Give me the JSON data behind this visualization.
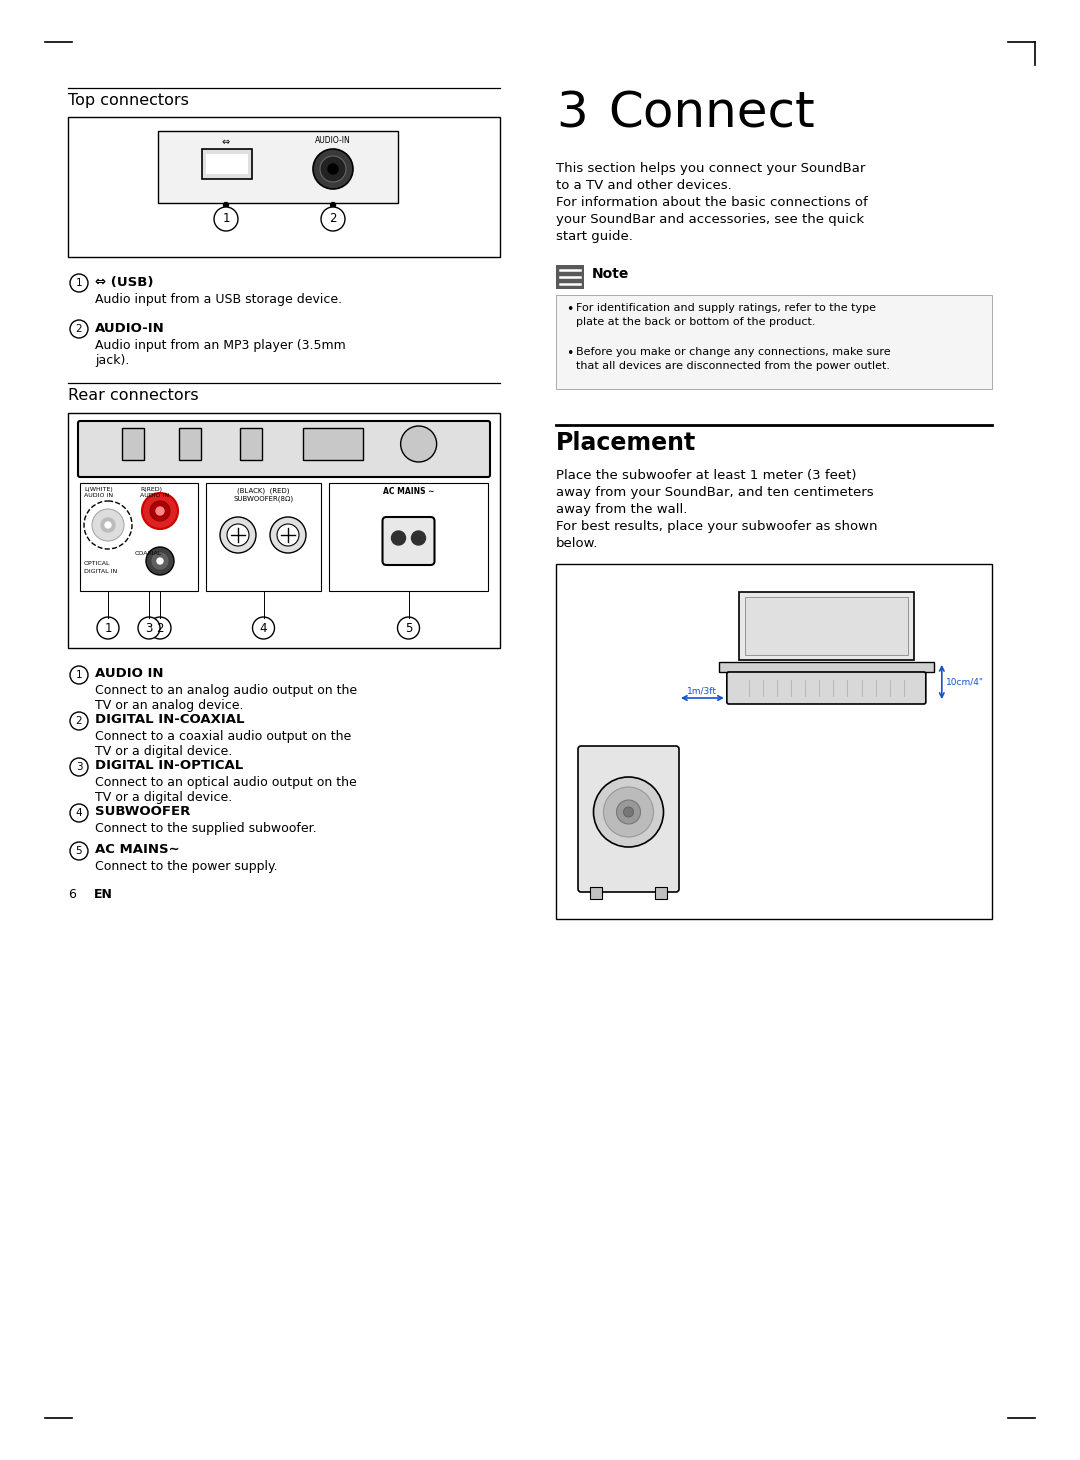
{
  "bg_color": "#ffffff",
  "top_connectors_title": "Top connectors",
  "usb_label": "  (USB)",
  "usb_desc": "Audio input from a USB storage device.",
  "audio_in_title": "AUDIO-IN",
  "audio_in_desc": "Audio input from an MP3 player (3.5mm\njack).",
  "rear_connectors_title": "Rear connectors",
  "rear_items": [
    {
      "num": "1",
      "title": "AUDIO IN",
      "desc": "Connect to an analog audio output on the\nTV or an analog device."
    },
    {
      "num": "2",
      "title": "DIGITAL IN-COAXIAL",
      "desc": "Connect to a coaxial audio output on the\nTV or a digital device."
    },
    {
      "num": "3",
      "title": "DIGITAL IN-OPTICAL",
      "desc": "Connect to an optical audio output on the\nTV or a digital device."
    },
    {
      "num": "4",
      "title": "SUBWOOFER",
      "desc": "Connect to the supplied subwoofer."
    },
    {
      "num": "5",
      "title": "AC MAINS∼",
      "desc": "Connect to the power supply."
    }
  ],
  "connect_chapter": "3",
  "connect_title": "Connect",
  "connect_intro_lines": [
    "This section helps you connect your SoundBar",
    "to a TV and other devices.",
    "For information about the basic connections of",
    "your SoundBar and accessories, see the quick",
    "start guide."
  ],
  "note_label": "Note",
  "note_bullets": [
    "For identification and supply ratings, refer to the type\nplate at the back or bottom of the product.",
    "Before you make or change any connections, make sure\nthat all devices are disconnected from the power outlet."
  ],
  "placement_title": "Placement",
  "placement_lines": [
    "Place the subwoofer at least 1 meter (3 feet)",
    "away from your SoundBar, and ten centimeters",
    "away from the wall.",
    "For best results, place your subwoofer as shown",
    "below."
  ],
  "measure_10cm": "10cm/4\"",
  "measure_1m": "1m/3ft",
  "page_num": "6",
  "page_lang": "EN"
}
